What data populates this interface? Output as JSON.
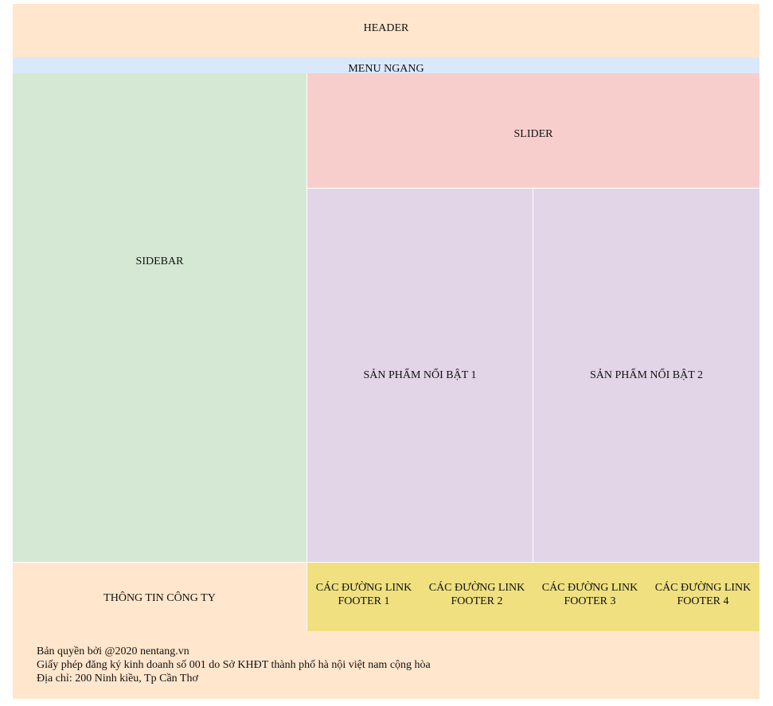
{
  "layout": {
    "header": "HEADER",
    "menu": "MENU NGANG",
    "sidebar": "SIDEBAR",
    "slider": "SLIDER",
    "products": [
      "SẢN PHẨM NỔI BẬT 1",
      "SẢN PHẨM NỔI BẬT 2"
    ],
    "company_info": "THÔNG TIN CÔNG TY",
    "footer_links": [
      {
        "line1": "CÁC ĐƯỜNG LINK",
        "line2": "FOOTER 1"
      },
      {
        "line1": "CÁC ĐƯỜNG LINK",
        "line2": "FOOTER 2"
      },
      {
        "line1": "CÁC ĐƯỜNG LINK",
        "line2": "FOOTER 3"
      },
      {
        "line1": "CÁC ĐƯỜNG LINK",
        "line2": "FOOTER 4"
      }
    ],
    "copyright": [
      "Bản quyền bởi @2020 nentang.vn",
      "Giấy phép đăng ký kinh doanh số 001 do Sở KHĐT thành phố hà nội việt nam cộng hòa",
      "Địa chỉ: 200 Ninh kiều, Tp Cần Thơ"
    ]
  },
  "colors": {
    "header": "#ffe6cc",
    "menu": "#dae8fc",
    "sidebar": "#d5e8d4",
    "slider": "#f8cecc",
    "products": "#e1d5e7",
    "footer_links": "#f0e080",
    "footer": "#ffe6cc"
  }
}
